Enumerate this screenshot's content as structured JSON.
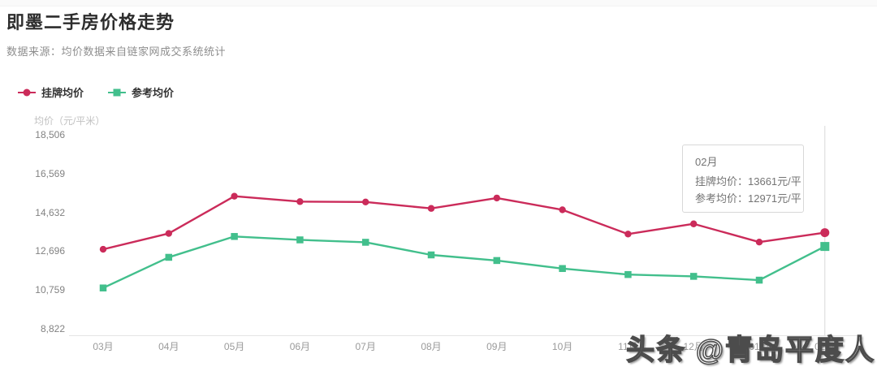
{
  "header": {
    "title": "即墨二手房价格走势",
    "subtitle": "数据来源：均价数据来自链家网成交系统统计"
  },
  "legend": {
    "items": [
      {
        "label": "挂牌均价",
        "color": "#cb2b5a",
        "shape": "circle"
      },
      {
        "label": "参考均价",
        "color": "#42bf8c",
        "shape": "square"
      }
    ]
  },
  "chart_data": {
    "type": "line",
    "title": "即墨二手房价格走势",
    "ylabel": "均价（元/平米）",
    "categories": [
      "03月",
      "04月",
      "05月",
      "06月",
      "07月",
      "08月",
      "09月",
      "10月",
      "11月",
      "12月",
      "01月",
      "02月"
    ],
    "series": [
      {
        "name": "挂牌均价",
        "color": "#cb2b5a",
        "marker": "circle",
        "values": [
          12830,
          13620,
          15480,
          15210,
          15190,
          14870,
          15390,
          14800,
          13590,
          14100,
          13190,
          13661
        ]
      },
      {
        "name": "参考均价",
        "color": "#42bf8c",
        "marker": "square",
        "values": [
          10900,
          12430,
          13470,
          13300,
          13180,
          12550,
          12270,
          11870,
          11570,
          11480,
          11290,
          12971
        ]
      }
    ],
    "y_ticks": [
      "8,822",
      "10,759",
      "12,696",
      "14,632",
      "16,569",
      "18,506"
    ],
    "ylim": [
      8822,
      18506
    ],
    "grid": false,
    "legend_position": "top-left",
    "hover_index": 11
  },
  "tooltip": {
    "title": "02月",
    "lines": [
      "挂牌均价：13661元/平",
      "参考均价：12971元/平"
    ]
  },
  "watermark": "头条 @青岛平度人"
}
